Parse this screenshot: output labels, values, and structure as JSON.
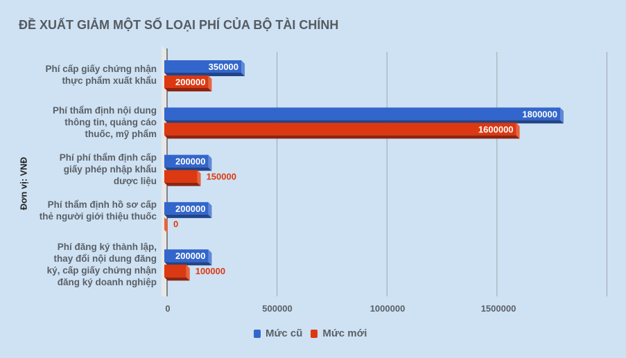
{
  "chart_data": {
    "type": "bar",
    "orientation": "horizontal",
    "style": "3d",
    "title": "ĐỀ XUẤT GIẢM MỘT SỐ LOẠI PHÍ CỦA BỘ TÀI CHÍNH",
    "ylabel": "Đơn vị: VNĐ",
    "xlabel": "",
    "categories": [
      "Phí cấp giấy chứng nhận thực phẩm xuất khẩu",
      "Phí thẩm định nội dung thông tin, quảng cáo thuốc, mỹ phẩm",
      "Phí phí thẩm định cấp giấy phép nhập khẩu dược liệu",
      "Phí thẩm định hồ sơ cấp thẻ người giới thiệu thuốc",
      "Phí đăng ký thành lập, thay đổi nội dung đăng ký, cấp giấy chứng nhận đăng ký doanh nghiệp"
    ],
    "series": [
      {
        "name": "Mức cũ",
        "color": "#3366cc",
        "values": [
          350000,
          1800000,
          200000,
          200000,
          200000
        ]
      },
      {
        "name": "Mức mới",
        "color": "#dc3912",
        "values": [
          200000,
          1600000,
          150000,
          0,
          100000
        ]
      }
    ],
    "xlim": [
      0,
      2000000
    ],
    "xticks": [
      "0",
      "500000",
      "1000000",
      "1500000"
    ],
    "grid": true,
    "legend": "bottom"
  }
}
